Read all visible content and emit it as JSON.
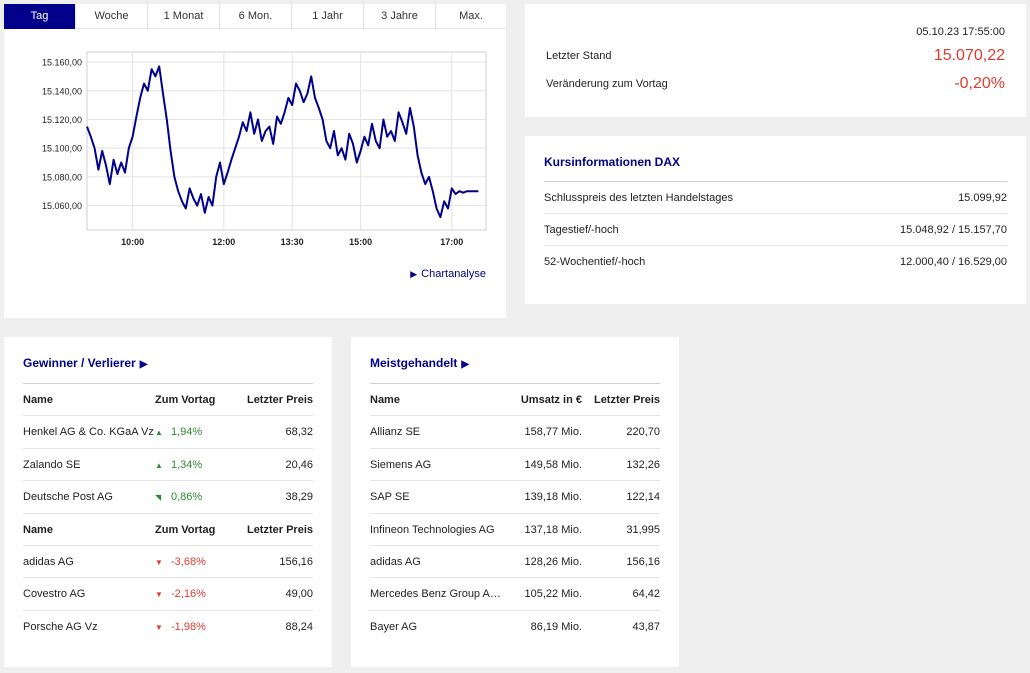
{
  "colors": {
    "accent": "#00008b",
    "positive": "#2e8b2e",
    "negative": "#e03a2e",
    "background": "#efefef"
  },
  "tabs": [
    "Tag",
    "Woche",
    "1 Monat",
    "6 Mon.",
    "1 Jahr",
    "3 Jahre",
    "Max."
  ],
  "active_tab": "Tag",
  "chart_link": "Chartanalyse",
  "chart_data": {
    "type": "line",
    "ytick_labels": [
      "15.160,00",
      "15.140,00",
      "15.120,00",
      "15.100,00",
      "15.080,00",
      "15.060,00"
    ],
    "yticks": [
      15160,
      15140,
      15120,
      15100,
      15080,
      15060
    ],
    "xtick_labels": [
      "10:00",
      "12:00",
      "13:30",
      "15:00",
      "17:00"
    ],
    "xticks": [
      "10:00",
      "12:00",
      "13:30",
      "15:00",
      "17:00"
    ],
    "xlim": [
      "09:00",
      "17:45"
    ],
    "ylim": [
      15043,
      15167
    ],
    "grid": true,
    "series": [
      {
        "x": [
          "09:00",
          "09:05",
          "09:10",
          "09:15",
          "09:20",
          "09:25",
          "09:30",
          "09:35",
          "09:40",
          "09:45",
          "09:50",
          "09:55",
          "10:00",
          "10:05",
          "10:10",
          "10:15",
          "10:20",
          "10:25",
          "10:30",
          "10:35",
          "10:40",
          "10:45",
          "10:50",
          "10:55",
          "11:00",
          "11:05",
          "11:10",
          "11:15",
          "11:20",
          "11:25",
          "11:30",
          "11:35",
          "11:40",
          "11:45",
          "11:50",
          "11:55",
          "12:00",
          "12:05",
          "12:10",
          "12:15",
          "12:20",
          "12:25",
          "12:30",
          "12:35",
          "12:40",
          "12:45",
          "12:50",
          "12:55",
          "13:00",
          "13:05",
          "13:10",
          "13:15",
          "13:20",
          "13:25",
          "13:30",
          "13:35",
          "13:40",
          "13:45",
          "13:50",
          "13:55",
          "14:00",
          "14:05",
          "14:10",
          "14:15",
          "14:20",
          "14:25",
          "14:30",
          "14:35",
          "14:40",
          "14:45",
          "14:50",
          "14:55",
          "15:00",
          "15:05",
          "15:10",
          "15:15",
          "15:20",
          "15:25",
          "15:30",
          "15:35",
          "15:40",
          "15:45",
          "15:50",
          "15:55",
          "16:00",
          "16:05",
          "16:10",
          "16:15",
          "16:20",
          "16:25",
          "16:30",
          "16:35",
          "16:40",
          "16:45",
          "16:50",
          "16:55",
          "17:00",
          "17:05",
          "17:10",
          "17:15",
          "17:20",
          "17:25",
          "17:30",
          "17:35"
        ],
        "y": [
          15115,
          15108,
          15100,
          15085,
          15098,
          15088,
          15075,
          15092,
          15082,
          15090,
          15083,
          15100,
          15108,
          15122,
          15135,
          15145,
          15140,
          15155,
          15150,
          15157,
          15138,
          15120,
          15098,
          15080,
          15070,
          15063,
          15058,
          15072,
          15065,
          15060,
          15068,
          15055,
          15066,
          15060,
          15080,
          15090,
          15075,
          15083,
          15092,
          15100,
          15108,
          15118,
          15112,
          15125,
          15110,
          15120,
          15105,
          15112,
          15115,
          15103,
          15122,
          15117,
          15125,
          15135,
          15130,
          15145,
          15140,
          15132,
          15138,
          15150,
          15135,
          15128,
          15120,
          15105,
          15100,
          15112,
          15095,
          15100,
          15092,
          15110,
          15103,
          15090,
          15098,
          15108,
          15102,
          15117,
          15105,
          15100,
          15120,
          15108,
          15112,
          15105,
          15125,
          15118,
          15110,
          15128,
          15115,
          15095,
          15083,
          15075,
          15080,
          15070,
          15058,
          15052,
          15063,
          15058,
          15072,
          15068,
          15070,
          15069,
          15070,
          15070,
          15070,
          15070
        ]
      }
    ]
  },
  "quote": {
    "date": "05.10.23 17:55:00",
    "last_label": "Letzter Stand",
    "last_value": "15.070,22",
    "change_label": "Veränderung zum Vortag",
    "change_value": "-0,20%"
  },
  "kursinfo": {
    "title": "Kursinformationen DAX",
    "rows": [
      {
        "label": "Schlusspreis des letzten Handelstages",
        "value": "15.099,92"
      },
      {
        "label": "Tagestief/-hoch",
        "value": "15.048,92 / 15.157,70"
      },
      {
        "label": "52-Wochentief/-hoch",
        "value": "12.000,40 / 16.529,00"
      }
    ]
  },
  "gainers": {
    "title": "Gewinner / Verlierer",
    "headers": [
      "Name",
      "Zum Vortag",
      "Letzter Preis"
    ],
    "winners": [
      {
        "name": "Henkel AG & Co. KGaA Vz",
        "change": "1,94%",
        "price": "68,32",
        "arrow": "▲"
      },
      {
        "name": "Zalando SE",
        "change": "1,34%",
        "price": "20,46",
        "arrow": "▲"
      },
      {
        "name": "Deutsche Post AG",
        "change": "0,86%",
        "price": "38,29",
        "arrow": "◥"
      }
    ],
    "losers": [
      {
        "name": "adidas AG",
        "change": "-3,68%",
        "price": "156,16",
        "arrow": "▼"
      },
      {
        "name": "Covestro AG",
        "change": "-2,16%",
        "price": "49,00",
        "arrow": "▼"
      },
      {
        "name": "Porsche AG Vz",
        "change": "-1,98%",
        "price": "88,24",
        "arrow": "▼"
      }
    ]
  },
  "traded": {
    "title": "Meistgehandelt",
    "headers": [
      "Name",
      "Umsatz in €",
      "Letzter Preis"
    ],
    "rows": [
      {
        "name": "Allianz SE",
        "turnover": "158,77 Mio.",
        "price": "220,70"
      },
      {
        "name": "Siemens AG",
        "turnover": "149,58 Mio.",
        "price": "132,26"
      },
      {
        "name": "SAP SE",
        "turnover": "139,18 Mio.",
        "price": "122,14"
      },
      {
        "name": "Infineon Technologies AG",
        "turnover": "137,18 Mio.",
        "price": "31,995"
      },
      {
        "name": "adidas AG",
        "turnover": "128,26 Mio.",
        "price": "156,16"
      },
      {
        "name": "Mercedes Benz Group AG ...",
        "turnover": "105,22 Mio.",
        "price": "64,42"
      },
      {
        "name": "Bayer AG",
        "turnover": "86,19 Mio.",
        "price": "43,87"
      }
    ]
  }
}
